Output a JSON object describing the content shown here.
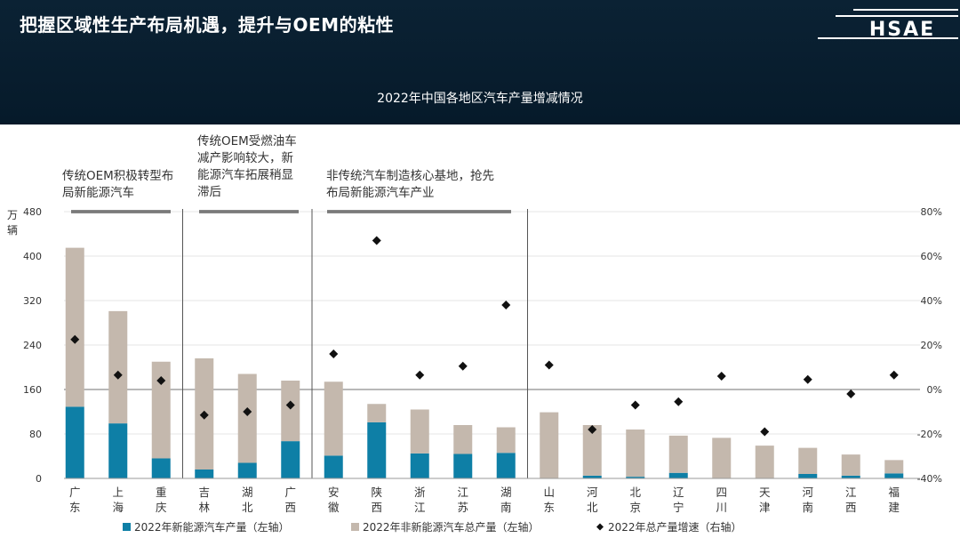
{
  "header": {
    "title": "把握区域性生产布局机遇，提升与OEM的粘性",
    "logo_text": "HSAE"
  },
  "chart_data": {
    "type": "bar",
    "title": "2022年中国各地区汽车产量增减情况",
    "ylabel": "万辆",
    "ylim": [
      0,
      480
    ],
    "y2lim": [
      -40,
      80
    ],
    "yticks": [
      "0",
      "80",
      "160",
      "240",
      "320",
      "400",
      "480"
    ],
    "y2ticks": [
      "-40%",
      "-20%",
      "0%",
      "20%",
      "40%",
      "60%",
      "80%"
    ],
    "categories": [
      "广东",
      "上海",
      "重庆",
      "吉林",
      "湖北",
      "广西",
      "安徽",
      "陕西",
      "浙江",
      "江苏",
      "湖南",
      "山东",
      "河北",
      "北京",
      "辽宁",
      "四川",
      "天津",
      "河南",
      "江西",
      "福建"
    ],
    "series": [
      {
        "name": "2022年新能源汽车产量（左轴）",
        "type": "bar",
        "color": "#0e7fa6",
        "values": [
          129,
          99,
          36,
          16,
          28,
          67,
          41,
          101,
          45,
          44,
          46,
          0,
          5,
          3,
          10,
          0,
          0,
          8,
          5,
          9
        ]
      },
      {
        "name": "2022年非新能源汽车总产量（左轴）",
        "type": "bar",
        "color": "#c4b8ad",
        "values": [
          286,
          202,
          174,
          200,
          160,
          109,
          133,
          33,
          79,
          52,
          46,
          119,
          91,
          85,
          67,
          73,
          59,
          47,
          38,
          24
        ]
      },
      {
        "name": "2022年总产量增速（右轴）",
        "type": "scatter",
        "color": "#111111",
        "values": [
          22.5,
          6.5,
          4,
          -11.5,
          -10,
          -7,
          16,
          67,
          6.5,
          10.5,
          38,
          11,
          -18,
          -7,
          -5.5,
          6,
          -19,
          4.5,
          -2,
          6.5
        ]
      }
    ],
    "groups": [
      {
        "label": [
          "传统OEM积极转型布",
          "局新能源汽车"
        ]
      },
      {
        "label": [
          "传统OEM受燃油车",
          "减产影响较大，新",
          "能源汽车拓展稍显",
          "滞后"
        ]
      },
      {
        "label": [
          "非传统汽车制造核心基地，抢先",
          "布局新能源汽车产业"
        ]
      }
    ],
    "legend_position": "bottom"
  }
}
